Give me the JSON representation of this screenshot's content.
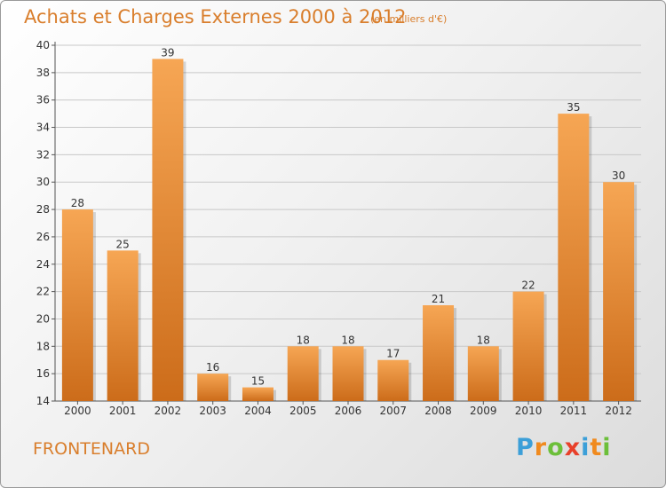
{
  "header": {
    "title": "Achats et Charges Externes 2000 à 2012",
    "subtitle": "(en milliers d'€)"
  },
  "footer": {
    "town": "FRONTENARD",
    "logo_text": "Proxiti",
    "logo_letters": [
      "P",
      "r",
      "o",
      "x",
      "i",
      "t",
      "i"
    ],
    "logo_colors": [
      "#3c9fd8",
      "#f08a1e",
      "#6cbf3a",
      "#e8402a",
      "#3c9fd8",
      "#f08a1e",
      "#6cbf3a"
    ]
  },
  "colors": {
    "bar_light": "#f6a654",
    "bar_dark": "#cc6c1a",
    "accent": "#d97e2c",
    "axis_text": "#333333"
  },
  "chart_data": {
    "type": "bar",
    "categories": [
      "2000",
      "2001",
      "2002",
      "2003",
      "2004",
      "2005",
      "2006",
      "2007",
      "2008",
      "2009",
      "2010",
      "2011",
      "2012"
    ],
    "values": [
      28,
      25,
      39,
      16,
      15,
      18,
      18,
      17,
      21,
      18,
      22,
      35,
      30
    ],
    "ylim": [
      14,
      40
    ],
    "yticks": [
      14,
      16,
      18,
      20,
      22,
      24,
      26,
      28,
      30,
      32,
      34,
      36,
      38,
      40
    ],
    "grid": true
  }
}
